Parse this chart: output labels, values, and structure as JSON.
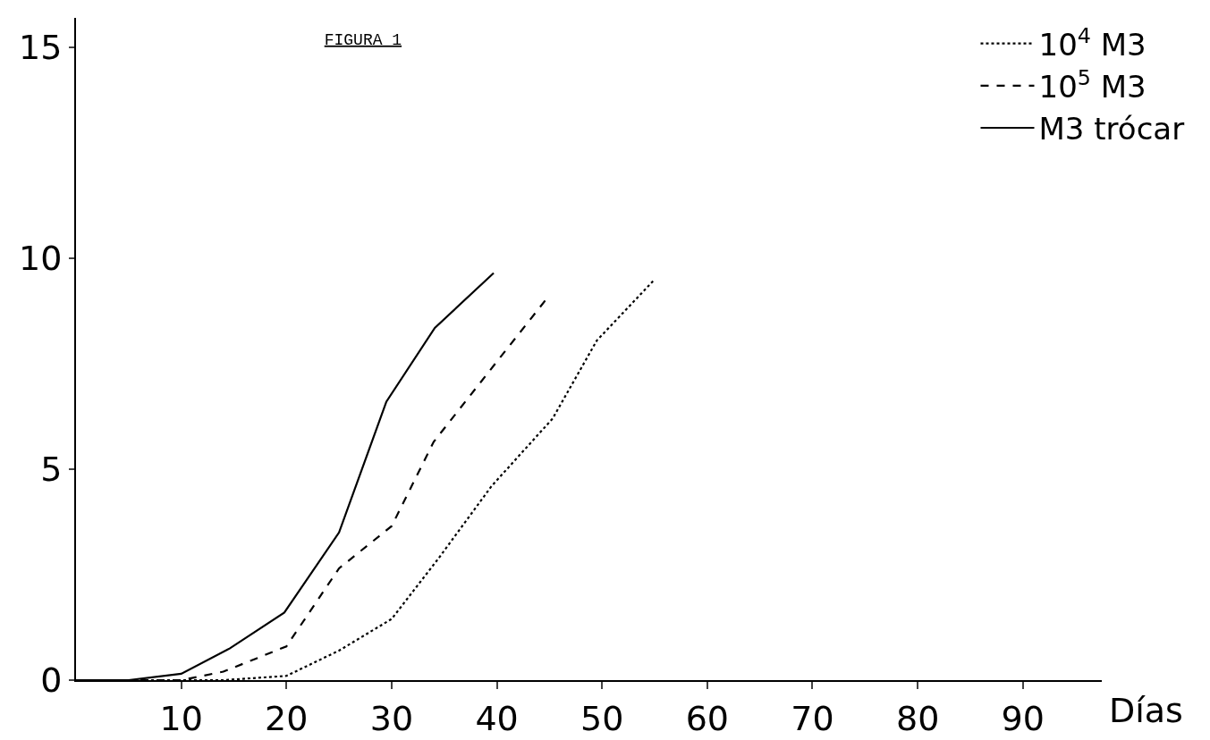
{
  "chart_data": {
    "type": "line",
    "title": "FIGURA 1",
    "xlabel": "Días",
    "xlim": [
      0,
      97.5
    ],
    "xticks": [
      10,
      20,
      30,
      40,
      50,
      60,
      70,
      80,
      90
    ],
    "ylim": [
      0,
      15.7
    ],
    "yticks": [
      0,
      5,
      10,
      15
    ],
    "grid": false,
    "legend": "top right",
    "marker": "none",
    "series": [
      {
        "name": "10$^{4}$ M3",
        "color": "#000000",
        "line_style": "dotted",
        "x": [
          0,
          10,
          14,
          20,
          25,
          30,
          34.5,
          39.5,
          45.3,
          49.5,
          55
        ],
        "values": [
          0,
          0,
          0,
          0.1,
          0.7,
          1.45,
          2.9,
          4.6,
          6.2,
          8.05,
          9.5
        ]
      },
      {
        "name": "10$^{5}$ M3",
        "color": "#000000",
        "line_style": "dashed",
        "x": [
          0,
          5,
          10,
          14,
          20,
          25,
          30,
          34,
          40,
          44.6
        ],
        "values": [
          0,
          0,
          0,
          0.2,
          0.8,
          2.65,
          3.65,
          5.65,
          7.55,
          9.0
        ]
      },
      {
        "name": "M3 trócar",
        "color": "#000000",
        "line_style": "solid",
        "x": [
          0,
          5,
          10,
          14.6,
          19.8,
          25,
          29.5,
          34.1,
          39.7
        ],
        "values": [
          0,
          0,
          0.15,
          0.75,
          1.6,
          3.5,
          6.6,
          8.35,
          9.65
        ]
      }
    ]
  }
}
